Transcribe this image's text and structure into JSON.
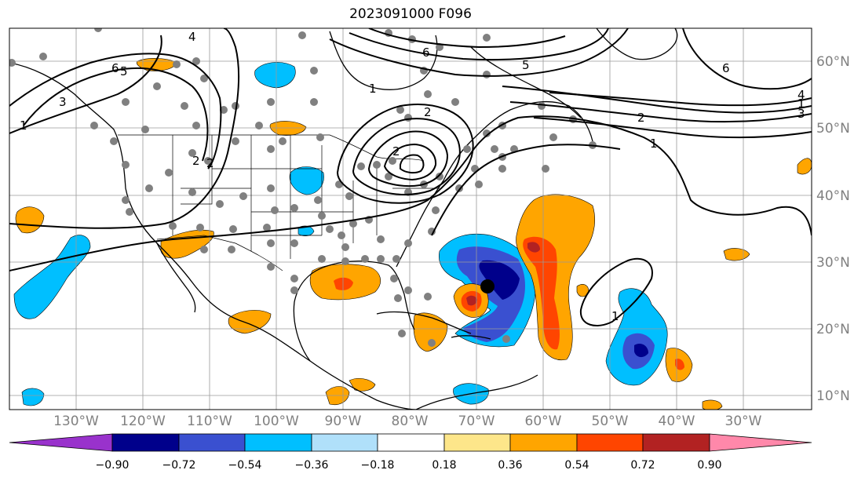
{
  "title": "2023091000 F096",
  "map": {
    "lon_labels": [
      "130°W",
      "120°W",
      "110°W",
      "100°W",
      "90°W",
      "80°W",
      "70°W",
      "60°W",
      "50°W",
      "40°W",
      "30°W"
    ],
    "lat_labels": [
      "60°N",
      "50°N",
      "40°N",
      "30°N",
      "20°N",
      "10°N"
    ],
    "contour_labels": [
      "6",
      "5",
      "4",
      "3",
      "2",
      "1",
      "2",
      "1",
      "6",
      "5",
      "4",
      "3",
      "2",
      "1",
      "2",
      "1",
      "6",
      "1",
      "2"
    ]
  },
  "colorbar": {
    "ticks": [
      "−0.90",
      "−0.72",
      "−0.54",
      "−0.36",
      "−0.18",
      "0.18",
      "0.36",
      "0.54",
      "0.72",
      "0.90"
    ],
    "colors": {
      "lt_-0.90": "#9932cc",
      "-0.90_-0.72": "#00008b",
      "-0.72_-0.54": "#3a50d0",
      "-0.54_-0.36": "#00bfff",
      "-0.36_-0.18": "#b0e0fa",
      "-0.18_0.18": "#ffffff",
      "0.18_0.36": "#fde68a",
      "0.36_0.54": "#ffa500",
      "0.54_0.72": "#ff4500",
      "0.72_0.90": "#b22222",
      "gt_0.90": "#ff88aa"
    }
  },
  "markers": {
    "station_color": "#808080",
    "storm_center_color": "#000000"
  }
}
